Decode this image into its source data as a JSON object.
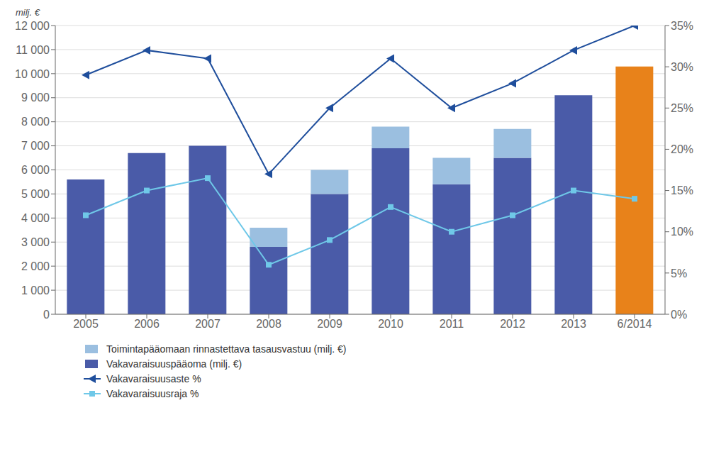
{
  "chart_data": {
    "type": "bar",
    "stacked": true,
    "grid": true,
    "legend": "bottom",
    "ylabel": "milj. €",
    "categories": [
      "2005",
      "2006",
      "2007",
      "2008",
      "2009",
      "2010",
      "2011",
      "2012",
      "2013",
      "6/2014"
    ],
    "ylim": [
      0,
      12000
    ],
    "yticks": [
      0,
      {
        "value": 1000,
        "label": "1 000"
      },
      {
        "value": 2000,
        "label": "2 000"
      },
      {
        "value": 3000,
        "label": "3 000"
      },
      {
        "value": 4000,
        "label": "4 000"
      },
      {
        "value": 5000,
        "label": "5 000"
      },
      {
        "value": 6000,
        "label": "6 000"
      },
      {
        "value": 7000,
        "label": "7 000"
      },
      {
        "value": 8000,
        "label": "8 000"
      },
      {
        "value": 9000,
        "label": "9 000"
      },
      {
        "value": 10000,
        "label": "10 000"
      },
      {
        "value": 11000,
        "label": "11 000"
      },
      {
        "value": 12000,
        "label": "12 000"
      }
    ],
    "y2lim": [
      0,
      35
    ],
    "y2ticks": [
      {
        "value": 0,
        "label": "0%"
      },
      {
        "value": 5,
        "label": "5%"
      },
      {
        "value": 10,
        "label": "10%"
      },
      {
        "value": 15,
        "label": "15%"
      },
      {
        "value": 20,
        "label": "20%"
      },
      {
        "value": 25,
        "label": "25%"
      },
      {
        "value": 30,
        "label": "30%"
      },
      {
        "value": 35,
        "label": "35%"
      }
    ],
    "series": [
      {
        "name": "Toimintapääomaan rinnastettava tasausvastuu (milj. €)",
        "type": "bar",
        "color": "#9BBFE0",
        "values": [
          0,
          0,
          0,
          800,
          1000,
          900,
          1100,
          1200,
          0,
          0
        ]
      },
      {
        "name": "Vakavaraisuuspääoma (milj. €)",
        "type": "bar",
        "colors": [
          "#4A5BA8",
          "#4A5BA8",
          "#4A5BA8",
          "#4A5BA8",
          "#4A5BA8",
          "#4A5BA8",
          "#4A5BA8",
          "#4A5BA8",
          "#4A5BA8",
          "#E8821A"
        ],
        "values": [
          5600,
          6700,
          7000,
          2800,
          5000,
          6900,
          5400,
          6500,
          9100,
          10300
        ]
      },
      {
        "name": "Vakavaraisuusaste %",
        "type": "line",
        "axis": "y2",
        "color": "#1F4E9C",
        "marker": "triangle-left",
        "values": [
          29.0,
          32.0,
          31.0,
          17.0,
          25.0,
          31.0,
          25.0,
          28.0,
          32.0,
          35.0
        ]
      },
      {
        "name": "Vakavaraisuusraja %",
        "type": "line",
        "axis": "y2",
        "color": "#6FC8E8",
        "marker": "square",
        "values": [
          12.0,
          15.0,
          16.5,
          6.0,
          9.0,
          13.0,
          10.0,
          12.0,
          15.0,
          14.0
        ]
      }
    ]
  }
}
